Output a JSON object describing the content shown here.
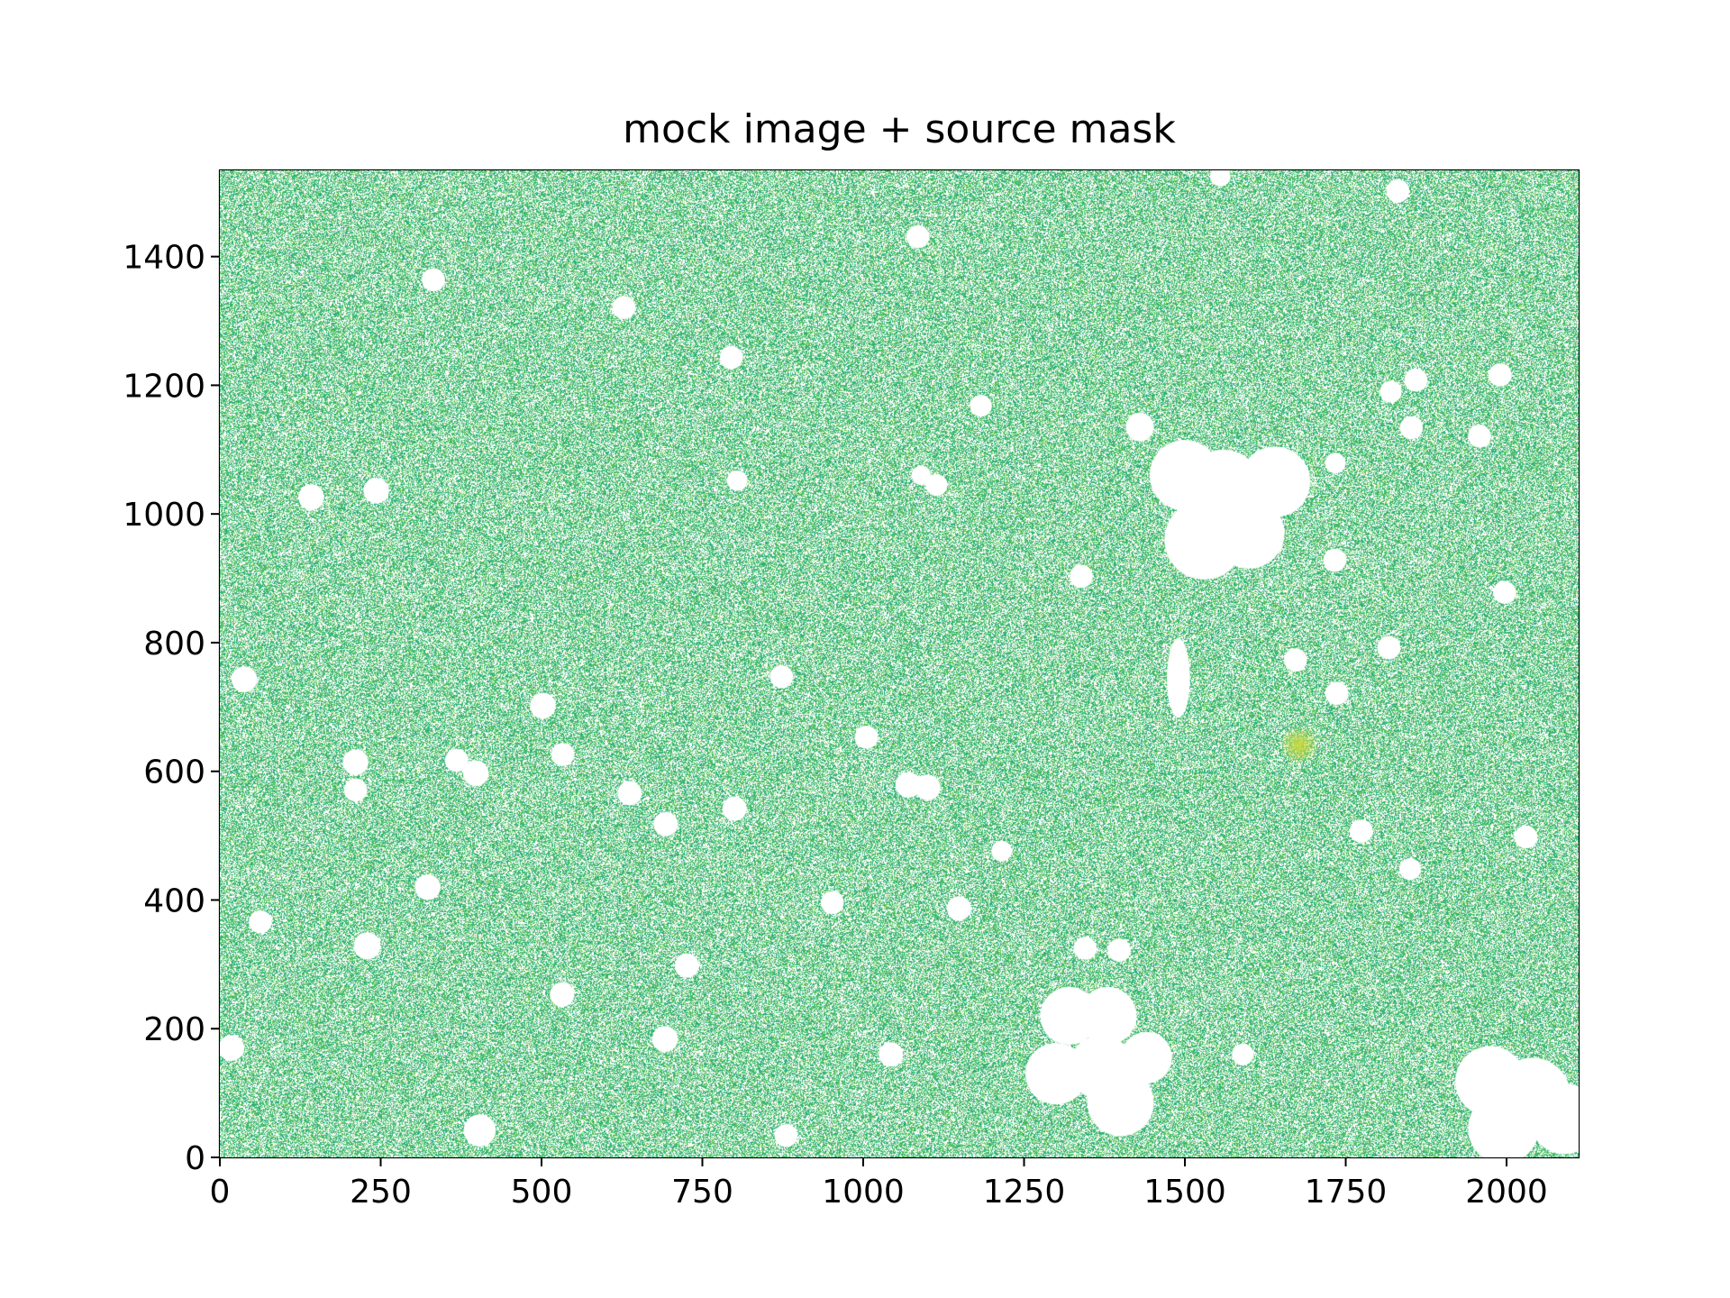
{
  "chart_data": {
    "type": "heatmap",
    "title": "mock image + source mask",
    "xlabel": "",
    "ylabel": "",
    "xlim": [
      0,
      2112
    ],
    "ylim": [
      0,
      1534
    ],
    "xticks": [
      0,
      250,
      500,
      750,
      1000,
      1250,
      1500,
      1750,
      2000
    ],
    "yticks": [
      0,
      200,
      400,
      600,
      800,
      1000,
      1200,
      1400
    ],
    "xtick_labels": [
      "0",
      "250",
      "500",
      "750",
      "1000",
      "1250",
      "1500",
      "1750",
      "2000"
    ],
    "ytick_labels": [
      "0",
      "200",
      "400",
      "600",
      "800",
      "1000",
      "1200",
      "1400"
    ],
    "colormap": "viridis",
    "background_fill_color": "#5cb870",
    "mask_color": "#ffffff",
    "bright_source": {
      "x": 1678,
      "y": 641,
      "color": "#c8d83a"
    },
    "masked_regions": [
      {
        "x": 1500,
        "y": 1060,
        "r": 55
      },
      {
        "x": 1560,
        "y": 1040,
        "r": 60
      },
      {
        "x": 1640,
        "y": 1050,
        "r": 55
      },
      {
        "x": 1530,
        "y": 960,
        "r": 62
      },
      {
        "x": 1600,
        "y": 970,
        "r": 55
      },
      {
        "x": 1430,
        "y": 1135,
        "r": 22
      },
      {
        "x": 1490,
        "y": 745,
        "rx": 18,
        "ry": 62
      },
      {
        "x": 1320,
        "y": 220,
        "r": 45
      },
      {
        "x": 1380,
        "y": 220,
        "r": 45
      },
      {
        "x": 1300,
        "y": 130,
        "r": 48
      },
      {
        "x": 1370,
        "y": 140,
        "r": 50
      },
      {
        "x": 1400,
        "y": 85,
        "r": 52
      },
      {
        "x": 1440,
        "y": 155,
        "r": 40
      },
      {
        "x": 1975,
        "y": 118,
        "r": 55
      },
      {
        "x": 2040,
        "y": 95,
        "r": 60
      },
      {
        "x": 2090,
        "y": 60,
        "r": 55
      },
      {
        "x": 1995,
        "y": 45,
        "r": 55
      },
      {
        "x": 38,
        "y": 743,
        "r": 20
      },
      {
        "x": 142,
        "y": 1026,
        "r": 20
      },
      {
        "x": 243,
        "y": 1036,
        "r": 20
      },
      {
        "x": 332,
        "y": 1364,
        "r": 18
      },
      {
        "x": 628,
        "y": 1321,
        "r": 18
      },
      {
        "x": 1085,
        "y": 1431,
        "r": 18
      },
      {
        "x": 1831,
        "y": 1502,
        "r": 18
      },
      {
        "x": 1555,
        "y": 1525,
        "r": 16
      },
      {
        "x": 1183,
        "y": 1168,
        "r": 17
      },
      {
        "x": 795,
        "y": 1243,
        "r": 18
      },
      {
        "x": 804,
        "y": 1052,
        "r": 16
      },
      {
        "x": 1114,
        "y": 1045,
        "r": 17
      },
      {
        "x": 1090,
        "y": 1060,
        "r": 15
      },
      {
        "x": 1859,
        "y": 1208,
        "r": 18
      },
      {
        "x": 1820,
        "y": 1190,
        "r": 17
      },
      {
        "x": 1990,
        "y": 1216,
        "r": 18
      },
      {
        "x": 1958,
        "y": 1121,
        "r": 18
      },
      {
        "x": 1852,
        "y": 1134,
        "r": 18
      },
      {
        "x": 1734,
        "y": 1079,
        "r": 16
      },
      {
        "x": 1733,
        "y": 928,
        "r": 18
      },
      {
        "x": 1997,
        "y": 878,
        "r": 18
      },
      {
        "x": 1817,
        "y": 792,
        "r": 18
      },
      {
        "x": 1672,
        "y": 773,
        "r": 18
      },
      {
        "x": 1736,
        "y": 721,
        "r": 18
      },
      {
        "x": 1339,
        "y": 903,
        "r": 18
      },
      {
        "x": 873,
        "y": 747,
        "r": 18
      },
      {
        "x": 1005,
        "y": 653,
        "r": 18
      },
      {
        "x": 502,
        "y": 702,
        "r": 20
      },
      {
        "x": 533,
        "y": 626,
        "r": 18
      },
      {
        "x": 211,
        "y": 614,
        "r": 20
      },
      {
        "x": 211,
        "y": 571,
        "r": 18
      },
      {
        "x": 368,
        "y": 617,
        "r": 18
      },
      {
        "x": 398,
        "y": 597,
        "r": 20
      },
      {
        "x": 637,
        "y": 566,
        "r": 19
      },
      {
        "x": 693,
        "y": 518,
        "r": 19
      },
      {
        "x": 800,
        "y": 542,
        "r": 19
      },
      {
        "x": 1070,
        "y": 579,
        "r": 20
      },
      {
        "x": 1100,
        "y": 575,
        "r": 20
      },
      {
        "x": 1774,
        "y": 507,
        "r": 18
      },
      {
        "x": 2030,
        "y": 498,
        "r": 18
      },
      {
        "x": 1850,
        "y": 448,
        "r": 17
      },
      {
        "x": 1215,
        "y": 476,
        "r": 16
      },
      {
        "x": 323,
        "y": 420,
        "r": 20
      },
      {
        "x": 63,
        "y": 366,
        "r": 18
      },
      {
        "x": 229,
        "y": 329,
        "r": 21
      },
      {
        "x": 952,
        "y": 396,
        "r": 18
      },
      {
        "x": 1149,
        "y": 387,
        "r": 19
      },
      {
        "x": 1345,
        "y": 325,
        "r": 18
      },
      {
        "x": 1398,
        "y": 322,
        "r": 18
      },
      {
        "x": 726,
        "y": 298,
        "r": 19
      },
      {
        "x": 532,
        "y": 253,
        "r": 19
      },
      {
        "x": 692,
        "y": 184,
        "r": 20
      },
      {
        "x": 1043,
        "y": 160,
        "r": 19
      },
      {
        "x": 1590,
        "y": 160,
        "r": 17
      },
      {
        "x": 18,
        "y": 170,
        "r": 20
      },
      {
        "x": 404,
        "y": 42,
        "r": 25
      },
      {
        "x": 880,
        "y": 34,
        "r": 18
      }
    ]
  }
}
